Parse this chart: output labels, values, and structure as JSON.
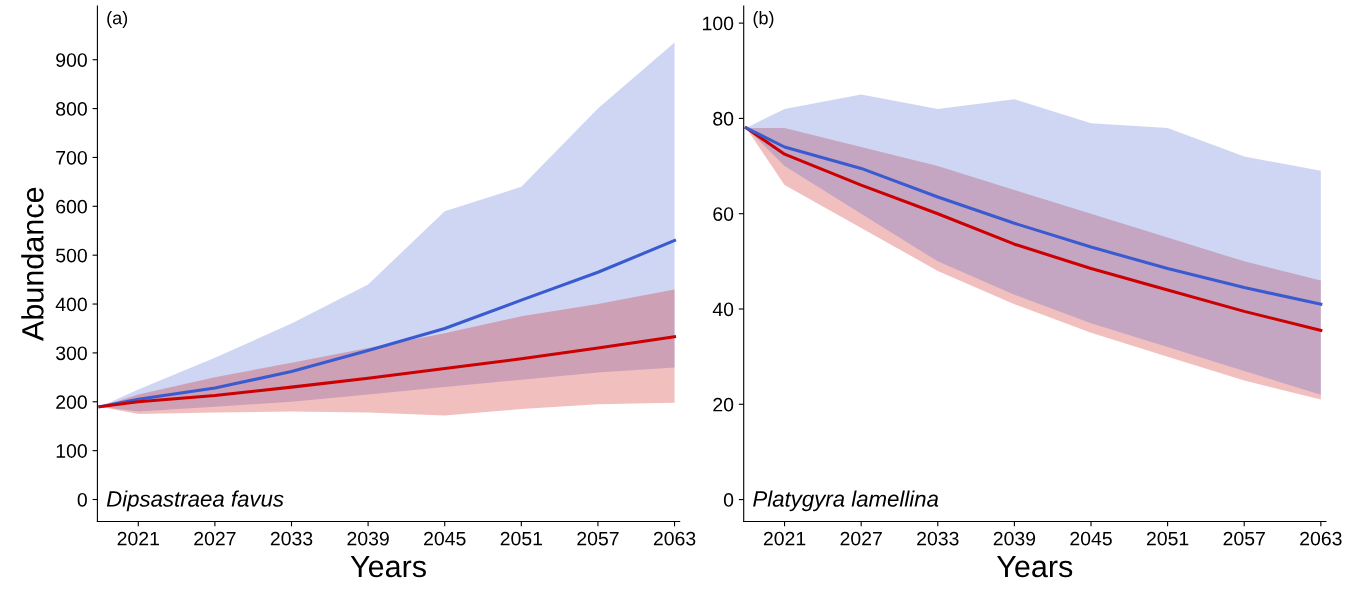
{
  "chart_data": [
    {
      "type": "line",
      "xlabel": "Years",
      "ylabel": "Abundance",
      "annotations": [
        "(a)",
        "Dipsastraea favus"
      ],
      "x": [
        2018,
        2021,
        2027,
        2033,
        2039,
        2045,
        2051,
        2057,
        2063
      ],
      "xlim": [
        2017.8,
        2063.4
      ],
      "xticks": [
        2021,
        2027,
        2033,
        2039,
        2045,
        2051,
        2057,
        2063
      ],
      "ylim": [
        -45,
        1010
      ],
      "yticks": [
        0,
        100,
        200,
        300,
        400,
        500,
        600,
        700,
        800,
        900
      ],
      "grid": false,
      "series": [
        {
          "color": "#3a5bd0",
          "values": [
            190,
            205,
            228,
            262,
            305,
            350,
            408,
            465,
            530
          ],
          "lower": [
            190,
            180,
            190,
            200,
            215,
            230,
            245,
            260,
            270
          ],
          "upper": [
            190,
            225,
            290,
            360,
            440,
            590,
            640,
            800,
            935
          ]
        },
        {
          "color": "#cc0000",
          "values": [
            190,
            200,
            213,
            230,
            248,
            268,
            288,
            310,
            333
          ],
          "lower": [
            190,
            175,
            178,
            180,
            178,
            172,
            185,
            195,
            198
          ],
          "upper": [
            190,
            215,
            250,
            280,
            310,
            340,
            375,
            400,
            430
          ]
        }
      ]
    },
    {
      "type": "line",
      "xlabel": "Years",
      "annotations": [
        "(b)",
        "Platygyra lamellina"
      ],
      "x": [
        2018,
        2021,
        2027,
        2033,
        2039,
        2045,
        2051,
        2057,
        2063
      ],
      "xlim": [
        2017.8,
        2063.4
      ],
      "xticks": [
        2021,
        2027,
        2033,
        2039,
        2045,
        2051,
        2057,
        2063
      ],
      "ylim": [
        -4.6,
        103.6
      ],
      "yticks": [
        0,
        20,
        40,
        60,
        80,
        100
      ],
      "grid": false,
      "series": [
        {
          "color": "#cc0000",
          "values": [
            78,
            72.5,
            66,
            60,
            53.6,
            48.5,
            44,
            39.5,
            35.5
          ],
          "lower": [
            78,
            66,
            57,
            48,
            41,
            35,
            30,
            25,
            21
          ],
          "upper": [
            78,
            78,
            74,
            70,
            65,
            60,
            55,
            50,
            46
          ]
        },
        {
          "color": "#3a5bd0",
          "values": [
            78,
            74,
            69.5,
            63.5,
            58,
            53,
            48.5,
            44.5,
            41
          ],
          "lower": [
            78,
            70,
            60,
            50,
            43,
            37,
            32,
            27,
            22
          ],
          "upper": [
            78,
            82,
            85,
            82,
            84,
            79,
            78,
            72,
            69
          ]
        }
      ]
    }
  ]
}
